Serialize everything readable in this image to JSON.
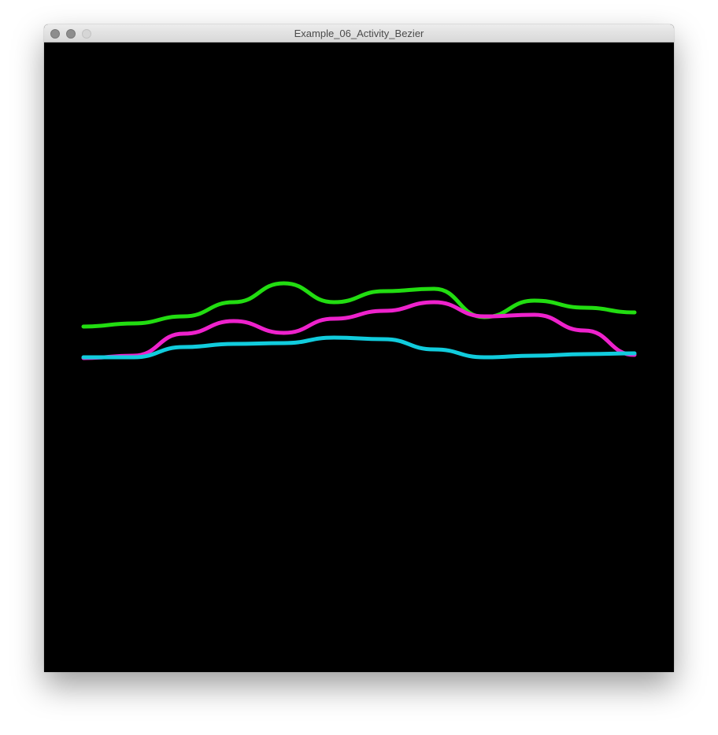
{
  "window": {
    "title": "Example_06_Activity_Bezier"
  },
  "colors": {
    "background": "#000000",
    "series_1": "#22dd11",
    "series_2": "#ee22cc",
    "series_3": "#11ccdd"
  },
  "chart_data": {
    "type": "line",
    "interpolation": "bezier",
    "grid": false,
    "legend": "none",
    "x": [
      0,
      1,
      2,
      3,
      4,
      5,
      6,
      7,
      8,
      9,
      10,
      11
    ],
    "xlim": [
      0,
      11
    ],
    "ylim": [
      0,
      800
    ],
    "series": [
      {
        "color": "#22dd11",
        "values": [
          439,
          443,
          452,
          470,
          494,
          470,
          484,
          487,
          451,
          472,
          463,
          457
        ]
      },
      {
        "color": "#ee22cc",
        "values": [
          399,
          402,
          430,
          446,
          431,
          449,
          459,
          470,
          452,
          454,
          434,
          403
        ]
      },
      {
        "color": "#11ccdd",
        "values": [
          400,
          400,
          413,
          417,
          418,
          425,
          423,
          410,
          400,
          402,
          404,
          405
        ]
      }
    ]
  }
}
